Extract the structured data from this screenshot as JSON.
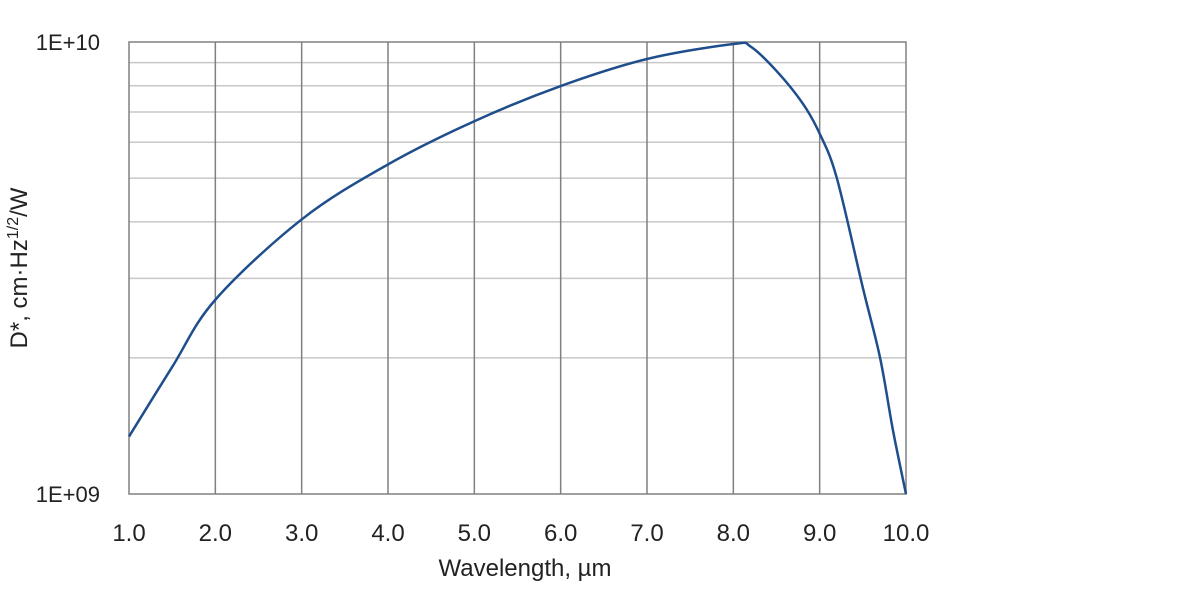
{
  "chart_data": {
    "type": "line",
    "title": "",
    "xlabel": "Wavelength, µm",
    "ylabel_parts": {
      "main": "D*, cm·Hz",
      "sup": "1/2",
      "tail": "/W"
    },
    "xlim": [
      1.0,
      10.0
    ],
    "ylim": [
      1000000000,
      10000000000
    ],
    "yscale": "log",
    "grid": true,
    "x_ticks": [
      "1.0",
      "2.0",
      "3.0",
      "4.0",
      "5.0",
      "6.0",
      "7.0",
      "8.0",
      "9.0",
      "10.0"
    ],
    "y_ticks": [
      "1E+09",
      "1E+10"
    ],
    "line_color": "#1f4e8c",
    "series": [
      {
        "x": [
          1.0,
          1.5,
          2.0,
          3.0,
          4.0,
          5.0,
          6.0,
          7.0,
          8.0,
          8.2,
          8.5,
          8.8,
          9.0,
          9.2,
          9.5,
          9.7,
          9.85,
          10.0
        ],
        "y": [
          1340000000.0,
          1910000000.0,
          2690000000.0,
          4050000000.0,
          5360000000.0,
          6680000000.0,
          7990000000.0,
          9170000000.0,
          9900000000.0,
          9770000000.0,
          8630000000.0,
          7330000000.0,
          6270000000.0,
          4990000000.0,
          2860000000.0,
          2000000000.0,
          1380000000.0,
          1000000000.0
        ]
      }
    ]
  }
}
